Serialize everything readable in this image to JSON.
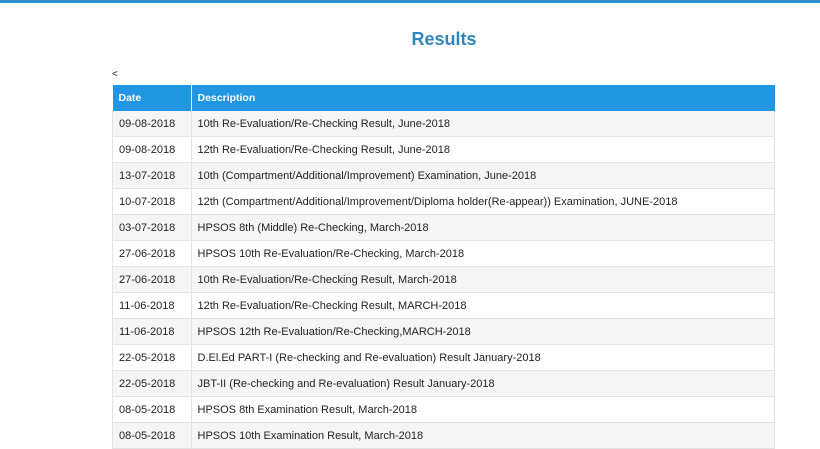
{
  "page": {
    "title": "Results",
    "back_label": "<"
  },
  "table": {
    "headers": {
      "date": "Date",
      "description": "Description"
    },
    "rows": [
      {
        "date": "09-08-2018",
        "description": "10th Re-Evaluation/Re-Checking Result, June-2018"
      },
      {
        "date": "09-08-2018",
        "description": "12th Re-Evaluation/Re-Checking Result, June-2018"
      },
      {
        "date": "13-07-2018",
        "description": "10th (Compartment/Additional/Improvement) Examination, June-2018"
      },
      {
        "date": "10-07-2018",
        "description": "12th (Compartment/Additional/Improvement/Diploma holder(Re-appear)) Examination, JUNE-2018"
      },
      {
        "date": "03-07-2018",
        "description": "HPSOS 8th (Middle) Re-Checking, March-2018"
      },
      {
        "date": "27-06-2018",
        "description": "HPSOS 10th Re-Evaluation/Re-Checking, March-2018"
      },
      {
        "date": "27-06-2018",
        "description": "10th Re-Evaluation/Re-Checking Result, March-2018"
      },
      {
        "date": "11-06-2018",
        "description": "12th Re-Evaluation/Re-Checking Result, MARCH-2018"
      },
      {
        "date": "11-06-2018",
        "description": "HPSOS 12th Re-Evaluation/Re-Checking,MARCH-2018"
      },
      {
        "date": "22-05-2018",
        "description": "D.El.Ed PART-I (Re-checking and Re-evaluation) Result January-2018"
      },
      {
        "date": "22-05-2018",
        "description": "JBT-II (Re-checking and Re-evaluation) Result January-2018"
      },
      {
        "date": "08-05-2018",
        "description": "HPSOS 8th Examination Result, March-2018"
      },
      {
        "date": "08-05-2018",
        "description": "HPSOS 10th Examination Result, March-2018"
      }
    ]
  },
  "colors": {
    "accent": "#2f8fd0",
    "header_bg": "#2196e3",
    "title": "#2f86bf"
  }
}
